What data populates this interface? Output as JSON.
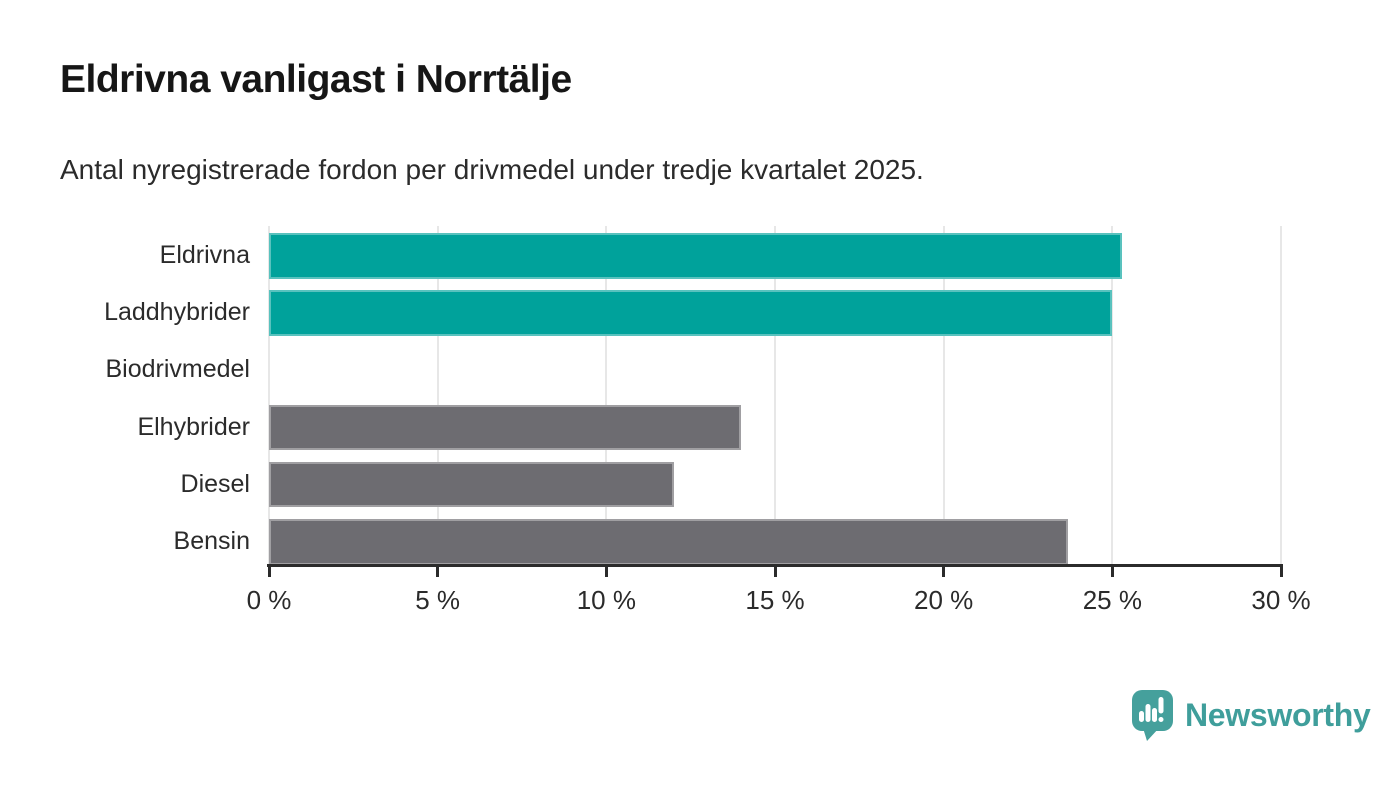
{
  "header": {
    "title": "Eldrivna vanligast i Norrtälje",
    "subtitle": "Antal nyregistrerade fordon per drivmedel under tredje kvartalet 2025."
  },
  "chart_data": {
    "type": "bar",
    "orientation": "horizontal",
    "title": "Eldrivna vanligast i Norrtälje",
    "subtitle": "Antal nyregistrerade fordon per drivmedel under tredje kvartalet 2025.",
    "categories": [
      "Eldrivna",
      "Laddhybrider",
      "Biodrivmedel",
      "Elhybrider",
      "Diesel",
      "Bensin"
    ],
    "values": [
      25.3,
      25.0,
      0,
      14.0,
      12.0,
      23.7
    ],
    "unit": "%",
    "bar_colors": [
      "#00a29b",
      "#00a29b",
      "#6d6c71",
      "#6d6c71",
      "#6d6c71",
      "#6d6c71"
    ],
    "xlabel": "",
    "ylabel": "",
    "xlim": [
      0,
      30
    ],
    "x_ticks": [
      0,
      5,
      10,
      15,
      20,
      25,
      30
    ],
    "x_tick_labels": [
      "0 %",
      "5 %",
      "10 %",
      "15 %",
      "20 %",
      "25 %",
      "30 %"
    ],
    "grid": true,
    "legend": "none"
  },
  "footer": {
    "brand": "Newsworthy",
    "logo_icon": "speech-bubble-bar-chart-exclamation-icon",
    "icon_color": "#45a09c",
    "icon_glyph_color": "#ffffff",
    "brand_color": "#3f9e9b"
  },
  "colors": {
    "bar_teal": "#00a29b",
    "bar_gray": "#6d6c71",
    "grid": "#e7e7e7",
    "axis": "#2b2b2b",
    "text_dark": "#161616",
    "text_body": "#2b2b2b",
    "background": "#ffffff"
  }
}
